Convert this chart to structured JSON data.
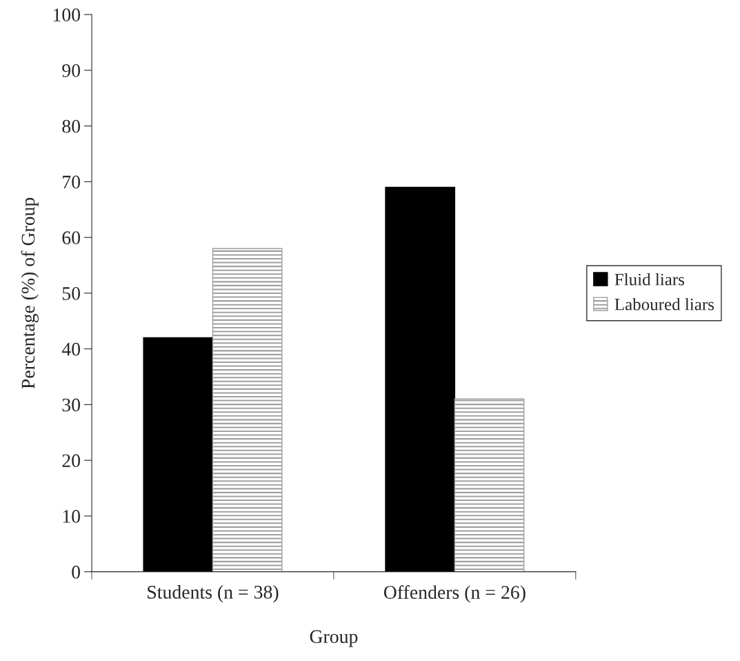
{
  "chart_data": {
    "type": "bar",
    "xlabel": "Group",
    "ylabel": "Percentage (%) of Group",
    "categories": [
      "Students (n = 38)",
      "Offenders (n = 26)"
    ],
    "series": [
      {
        "name": "Fluid liars",
        "color": "#000000",
        "values": [
          42,
          69
        ]
      },
      {
        "name": "Laboured liars",
        "color": "#a0a0a0",
        "values": [
          58,
          31
        ]
      }
    ],
    "ylim": [
      0,
      100
    ],
    "yticks": [
      0,
      10,
      20,
      30,
      40,
      50,
      60,
      70,
      80,
      90,
      100
    ],
    "grid": false,
    "legend": "right"
  }
}
